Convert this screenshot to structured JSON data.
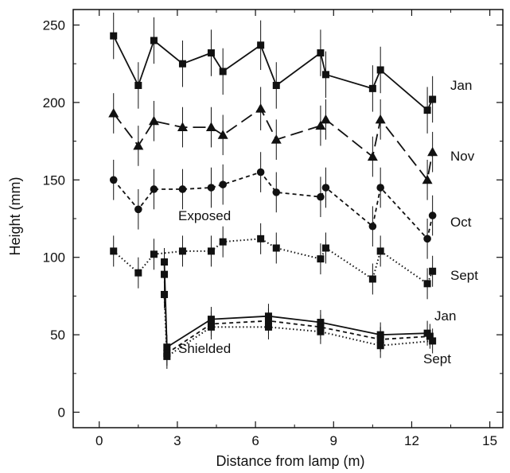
{
  "chart_data": {
    "type": "line",
    "title": "",
    "xlabel": "Distance from lamp (m)",
    "ylabel": "Height (mm)",
    "xlim": [
      -1,
      15.5
    ],
    "ylim": [
      -10,
      260
    ],
    "xticks": [
      0,
      3,
      6,
      9,
      12,
      15
    ],
    "yticks": [
      0,
      50,
      100,
      150,
      200,
      250
    ],
    "grid": false,
    "legend": "none",
    "group_labels": [
      "Exposed",
      "Shielded"
    ],
    "series": [
      {
        "name": "Jan",
        "group": "exposed",
        "marker": "square",
        "dash": "solid",
        "x": [
          0.55,
          1.5,
          2.1,
          3.2,
          4.3,
          4.75,
          6.2,
          6.8,
          8.5,
          8.7,
          10.5,
          10.8,
          12.6,
          12.8
        ],
        "y": [
          243,
          211,
          240,
          225,
          232,
          220,
          237,
          211,
          232,
          218,
          209,
          221,
          195,
          202
        ],
        "err": [
          15,
          15,
          15,
          15,
          15,
          15,
          16,
          15,
          15,
          15,
          15,
          15,
          15,
          15
        ]
      },
      {
        "name": "Nov",
        "group": "exposed",
        "marker": "triangle",
        "dash": "longdash",
        "x": [
          0.55,
          1.5,
          2.1,
          3.2,
          4.3,
          4.75,
          6.2,
          6.8,
          8.5,
          8.7,
          10.5,
          10.8,
          12.6,
          12.8
        ],
        "y": [
          193,
          172,
          188,
          184,
          184,
          179,
          196,
          176,
          185,
          189,
          165,
          189,
          150,
          168
        ],
        "err": [
          13,
          13,
          13,
          13,
          13,
          13,
          14,
          13,
          13,
          13,
          13,
          13,
          13,
          13
        ]
      },
      {
        "name": "Oct",
        "group": "exposed",
        "marker": "circle",
        "dash": "dashed",
        "x": [
          0.55,
          1.5,
          2.1,
          3.2,
          4.3,
          4.75,
          6.2,
          6.8,
          8.5,
          8.7,
          10.5,
          10.8,
          12.6,
          12.8
        ],
        "y": [
          150,
          131,
          144,
          144,
          145,
          147,
          155,
          142,
          139,
          145,
          120,
          145,
          112,
          127
        ],
        "err": [
          13,
          13,
          13,
          13,
          13,
          13,
          13,
          13,
          13,
          13,
          13,
          13,
          13,
          13
        ]
      },
      {
        "name": "Sept",
        "group": "exposed",
        "marker": "square",
        "dash": "dotted",
        "x": [
          0.55,
          1.5,
          2.1,
          3.2,
          4.3,
          4.75,
          6.2,
          6.8,
          8.5,
          8.7,
          10.5,
          10.8,
          12.6,
          12.8
        ],
        "y": [
          104,
          90,
          102,
          104,
          104,
          110,
          112,
          106,
          99,
          106,
          86,
          104,
          83,
          91
        ],
        "err": [
          10,
          10,
          10,
          10,
          10,
          10,
          10,
          10,
          10,
          10,
          10,
          10,
          10,
          10
        ]
      },
      {
        "name": "Jan",
        "group": "shielded",
        "marker": "square",
        "dash": "solid",
        "x": [
          2.5,
          2.6,
          4.3,
          6.5,
          8.5,
          10.8,
          12.6
        ],
        "y": [
          97,
          42,
          60,
          62,
          58,
          50,
          51
        ],
        "err": [
          9,
          8,
          8,
          8,
          8,
          8,
          8
        ]
      },
      {
        "name": "",
        "group": "shielded",
        "marker": "square",
        "dash": "dashed",
        "x": [
          2.5,
          2.6,
          4.3,
          6.5,
          8.5,
          10.8,
          12.7
        ],
        "y": [
          89,
          38,
          57,
          59,
          55,
          47,
          49
        ],
        "err": [
          9,
          8,
          8,
          8,
          8,
          8,
          8
        ]
      },
      {
        "name": "Sept",
        "group": "shielded",
        "marker": "square",
        "dash": "dotted",
        "x": [
          2.5,
          2.6,
          4.3,
          6.5,
          8.5,
          10.8,
          12.8
        ],
        "y": [
          76,
          36,
          55,
          55,
          52,
          43,
          46
        ],
        "err": [
          9,
          8,
          8,
          8,
          8,
          8,
          8
        ]
      }
    ]
  }
}
